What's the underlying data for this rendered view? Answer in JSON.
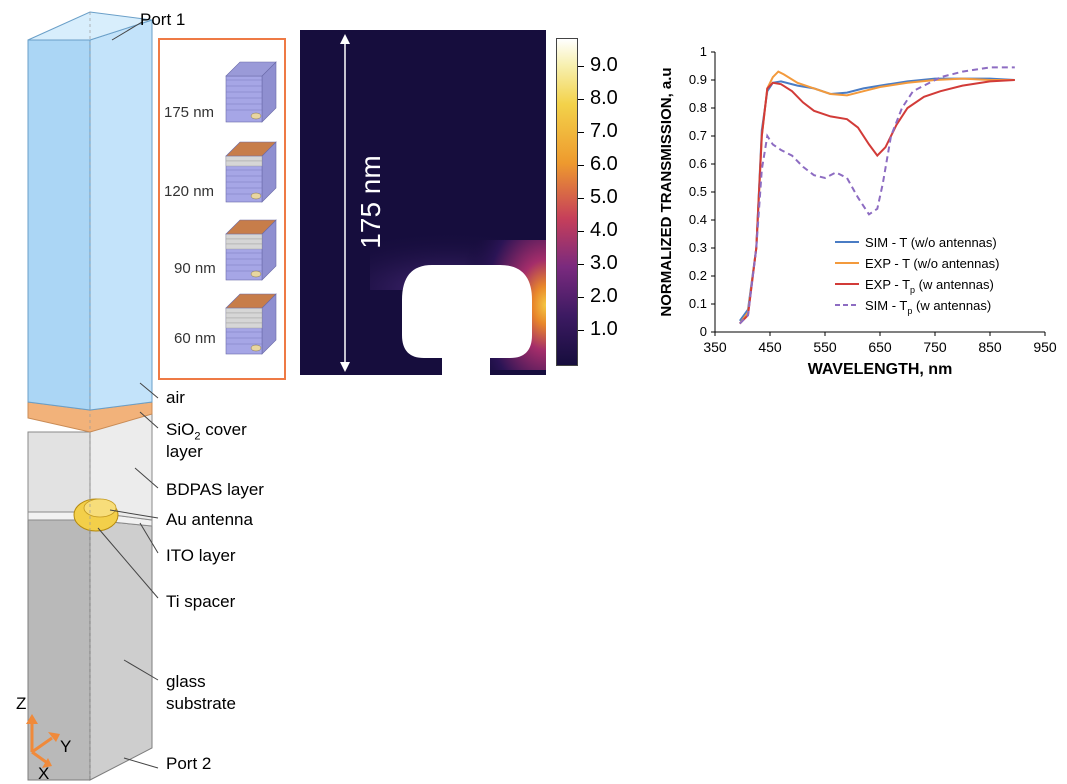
{
  "model": {
    "port1": "Port 1",
    "port2": "Port 2",
    "air": "air",
    "sio2_main": "SiO",
    "sio2_sub": "2",
    "sio2_rest": " cover",
    "sio2_line2": "layer",
    "bdpas": "BDPAS layer",
    "au": "Au antenna",
    "ito": "ITO layer",
    "ti": "Ti spacer",
    "glass_line1": "glass",
    "glass_line2": "substrate",
    "axis_z": "Z",
    "axis_y": "Y",
    "axis_x": "X",
    "colors": {
      "air": "#aed8f6",
      "sio2": "#f2b27a",
      "bdpas": "#e4e4e4",
      "glass": "#c0c0c0",
      "au": "#f3cf4a"
    }
  },
  "stacks": {
    "border_color": "#ee7a45",
    "labels": [
      "175 nm",
      "120 nm",
      "90 nm",
      "60 nm"
    ]
  },
  "field_map": {
    "scale_label": "175 nm",
    "colorbar_ticks": [
      "9.0",
      "8.0",
      "7.0",
      "6.0",
      "5.0",
      "4.0",
      "3.0",
      "2.0",
      "1.0"
    ]
  },
  "chart_data": {
    "type": "line",
    "xlabel": "WAVELENGTH, nm",
    "ylabel": "NORMALIZED TRANSMISSION, a.u",
    "xlim": [
      350,
      950
    ],
    "ylim": [
      0,
      1
    ],
    "xticks": [
      350,
      450,
      550,
      650,
      750,
      850,
      950
    ],
    "yticks": [
      "0",
      "0.1",
      "0.2",
      "0.3",
      "0.4",
      "0.5",
      "0.6",
      "0.7",
      "0.8",
      "0.9",
      "1"
    ],
    "legend_position": "lower-right",
    "series": [
      {
        "name": "SIM  - T (w/o antennas)",
        "color": "#4a7cc4",
        "dash": "solid",
        "x": [
          395,
          410,
          425,
          435,
          445,
          455,
          470,
          500,
          530,
          560,
          590,
          620,
          650,
          700,
          750,
          800,
          850,
          895
        ],
        "y": [
          0.04,
          0.08,
          0.3,
          0.72,
          0.86,
          0.89,
          0.895,
          0.88,
          0.87,
          0.85,
          0.855,
          0.87,
          0.88,
          0.895,
          0.905,
          0.905,
          0.905,
          0.9
        ]
      },
      {
        "name": "EXP - T (w/o antennas)",
        "color": "#f39a3c",
        "dash": "solid",
        "x": [
          395,
          410,
          425,
          435,
          445,
          455,
          465,
          475,
          500,
          530,
          560,
          590,
          620,
          650,
          700,
          750,
          800,
          850,
          895
        ],
        "y": [
          0.03,
          0.07,
          0.3,
          0.7,
          0.87,
          0.91,
          0.93,
          0.92,
          0.89,
          0.87,
          0.85,
          0.845,
          0.86,
          0.875,
          0.89,
          0.9,
          0.905,
          0.9,
          0.9
        ]
      },
      {
        "name": "EXP - T",
        "name_sub": "p",
        "name_rest": " (w antennas)",
        "color": "#d23b38",
        "dash": "solid",
        "x": [
          395,
          410,
          425,
          435,
          445,
          455,
          470,
          490,
          510,
          530,
          560,
          590,
          610,
          630,
          645,
          660,
          680,
          700,
          730,
          760,
          800,
          850,
          895
        ],
        "y": [
          0.03,
          0.06,
          0.3,
          0.7,
          0.87,
          0.89,
          0.885,
          0.86,
          0.82,
          0.79,
          0.77,
          0.76,
          0.73,
          0.67,
          0.63,
          0.66,
          0.74,
          0.8,
          0.84,
          0.86,
          0.88,
          0.895,
          0.9
        ]
      },
      {
        "name": "SIM  - T",
        "name_sub": "p",
        "name_rest": " (w antennas)",
        "color": "#8d6cc2",
        "dash": "dashed",
        "x": [
          395,
          410,
          425,
          435,
          445,
          455,
          470,
          490,
          510,
          530,
          550,
          570,
          590,
          610,
          630,
          645,
          655,
          670,
          690,
          710,
          730,
          760,
          800,
          850,
          895
        ],
        "y": [
          0.03,
          0.06,
          0.3,
          0.58,
          0.7,
          0.67,
          0.65,
          0.63,
          0.59,
          0.56,
          0.55,
          0.57,
          0.55,
          0.48,
          0.42,
          0.44,
          0.53,
          0.7,
          0.8,
          0.86,
          0.88,
          0.91,
          0.93,
          0.945,
          0.945
        ]
      }
    ]
  }
}
